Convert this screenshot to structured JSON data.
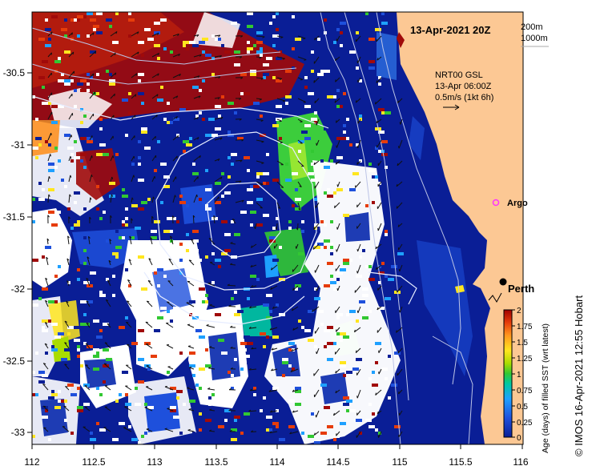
{
  "map": {
    "date_label": "13-Apr-2021 20Z",
    "isobath_labels": [
      "200m",
      "1000m"
    ],
    "current_info": [
      "NRT00 GSL",
      "13-Apr 06:00Z",
      "0.5m/s (1kt 6h)"
    ],
    "places": [
      {
        "name": "Argo",
        "lon": 115.85,
        "lat": -31.45,
        "color": "#ff33ff"
      },
      {
        "name": "Perth",
        "lon": 115.86,
        "lat": -31.95,
        "color": "#000000"
      }
    ],
    "credit": "© IMOS 16-Apr-2021 12:55 Hobart",
    "x_ticks": [
      "112",
      "112.5",
      "113",
      "113.5",
      "114",
      "114.5",
      "115",
      "115.5",
      "116"
    ],
    "y_ticks": [
      "-30.5",
      "-31",
      "-31.5",
      "-32",
      "-32.5",
      "-33"
    ],
    "colors": {
      "land": "#fcc894",
      "deep_water": "#0a1e96"
    }
  },
  "colorbar": {
    "label": "Age (days) of filled SST (wrt latest)",
    "ticks": [
      "2",
      "1.75",
      "1.5",
      "1.25",
      "1",
      "0.75",
      "0.5",
      "0.25",
      "0"
    ]
  }
}
